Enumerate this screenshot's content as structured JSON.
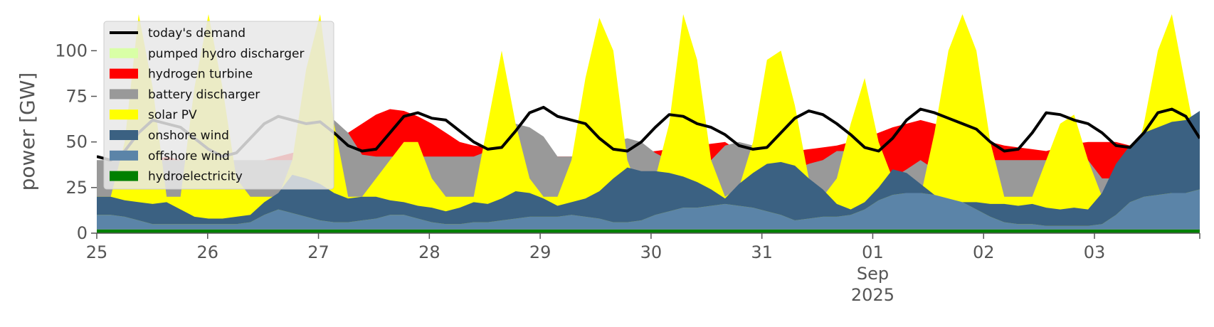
{
  "chart_data": {
    "type": "area",
    "ylabel": "power [GW]",
    "ylim": [
      0,
      120
    ],
    "y_ticks": [
      0,
      25,
      50,
      75,
      100
    ],
    "y_tick_labels": [
      "0",
      "25",
      "50",
      "75",
      "100"
    ],
    "x_range_days": [
      0,
      9.95
    ],
    "x_ticks": [
      {
        "day": 0,
        "label": "25"
      },
      {
        "day": 1,
        "label": "26"
      },
      {
        "day": 2,
        "label": "27"
      },
      {
        "day": 3,
        "label": "28"
      },
      {
        "day": 4,
        "label": "29"
      },
      {
        "day": 5,
        "label": "30"
      },
      {
        "day": 6,
        "label": "31"
      },
      {
        "day": 7,
        "label": "01"
      },
      {
        "day": 8,
        "label": "02"
      },
      {
        "day": 9,
        "label": "03"
      }
    ],
    "month_label": "Sep",
    "year_label": "2025",
    "grid": false,
    "legend_position": "upper-left",
    "legend_order": [
      "demand",
      "pumped_hydro",
      "hydrogen",
      "battery",
      "solar",
      "onshore",
      "offshore",
      "hydro"
    ],
    "series": [
      {
        "key": "hydro",
        "name": "hydroelectricity",
        "color": "#008000",
        "values": [
          2,
          2,
          2,
          2,
          2,
          2,
          2,
          2,
          2,
          2,
          2,
          2,
          2,
          2,
          2,
          2,
          2,
          2,
          2,
          2,
          2,
          2,
          2,
          2,
          2,
          2,
          2,
          2,
          2,
          2,
          2,
          2,
          2,
          2,
          2,
          2,
          2,
          2,
          2,
          2,
          2,
          2,
          2,
          2,
          2,
          2,
          2,
          2,
          2,
          2,
          2,
          2,
          2,
          2,
          2,
          2,
          2,
          2,
          2,
          2,
          2,
          2,
          2,
          2,
          2,
          2,
          2,
          2,
          2,
          2,
          2,
          2,
          2,
          2,
          2,
          2,
          2,
          2,
          2,
          2
        ]
      },
      {
        "key": "offshore",
        "name": "offshore wind",
        "color": "#5b84a8",
        "values": [
          10,
          10,
          9,
          7,
          5,
          5,
          5,
          5,
          5,
          5,
          5,
          6,
          10,
          13,
          11,
          9,
          7,
          6,
          6,
          7,
          8,
          10,
          10,
          8,
          6,
          5,
          5,
          6,
          6,
          7,
          8,
          9,
          9,
          9,
          10,
          9,
          8,
          6,
          6,
          7,
          10,
          12,
          14,
          14,
          15,
          16,
          15,
          14,
          12,
          10,
          7,
          8,
          9,
          9,
          10,
          13,
          18,
          21,
          22,
          22,
          21,
          19,
          17,
          13,
          9,
          6,
          5,
          5,
          4,
          4,
          4,
          4,
          5,
          10,
          17,
          20,
          21,
          22,
          22,
          24
        ]
      },
      {
        "key": "onshore",
        "name": "onshore wind",
        "color": "#3b6182",
        "values": [
          20,
          20,
          18,
          17,
          16,
          17,
          13,
          9,
          8,
          8,
          9,
          10,
          17,
          22,
          32,
          30,
          27,
          22,
          19,
          20,
          20,
          18,
          17,
          15,
          14,
          12,
          14,
          17,
          16,
          19,
          23,
          22,
          19,
          15,
          17,
          19,
          23,
          30,
          36,
          34,
          34,
          33,
          31,
          28,
          24,
          19,
          27,
          33,
          38,
          39,
          37,
          30,
          24,
          16,
          13,
          17,
          25,
          35,
          33,
          27,
          20,
          17,
          17,
          17,
          16,
          16,
          15,
          16,
          14,
          13,
          14,
          13,
          22,
          38,
          48,
          55,
          58,
          61,
          62,
          67
        ]
      },
      {
        "key": "solar",
        "name": "solar PV",
        "color": "#ffff00",
        "values": [
          20,
          20,
          50,
          120,
          80,
          20,
          20,
          80,
          120,
          80,
          30,
          20,
          20,
          20,
          40,
          90,
          120,
          60,
          20,
          20,
          30,
          40,
          50,
          50,
          30,
          20,
          20,
          20,
          60,
          100,
          60,
          30,
          20,
          20,
          40,
          85,
          118,
          100,
          40,
          20,
          30,
          60,
          120,
          95,
          40,
          20,
          25,
          50,
          95,
          100,
          70,
          30,
          20,
          30,
          60,
          85,
          50,
          30,
          20,
          20,
          55,
          100,
          120,
          100,
          50,
          20,
          20,
          20,
          40,
          60,
          65,
          40,
          20,
          20,
          30,
          60,
          100,
          120,
          80,
          40
        ]
      },
      {
        "key": "battery",
        "name": "battery discharger",
        "color": "#999999",
        "values": [
          40,
          40,
          40,
          40,
          40,
          40,
          40,
          40,
          40,
          40,
          40,
          40,
          40,
          40,
          40,
          40,
          60,
          62,
          55,
          43,
          42,
          42,
          42,
          42,
          42,
          42,
          42,
          42,
          45,
          58,
          60,
          58,
          53,
          42,
          42,
          42,
          42,
          50,
          52,
          50,
          44,
          40,
          40,
          40,
          40,
          48,
          50,
          48,
          42,
          38,
          35,
          38,
          40,
          45,
          45,
          40,
          38,
          30,
          35,
          40,
          35,
          38,
          40,
          40,
          40,
          40,
          40,
          40,
          40,
          40,
          40,
          40,
          30,
          30,
          35,
          40,
          40,
          40,
          40,
          40
        ]
      },
      {
        "key": "hydrogen",
        "name": "hydrogen turbine",
        "color": "#ff0000",
        "values": [
          32,
          33,
          35,
          38,
          40,
          42,
          40,
          35,
          30,
          25,
          28,
          35,
          40,
          42,
          44,
          45,
          46,
          50,
          55,
          60,
          65,
          68,
          67,
          64,
          60,
          55,
          50,
          48,
          47,
          46,
          45,
          44,
          43,
          42,
          42,
          42,
          42,
          43,
          44,
          44,
          45,
          46,
          47,
          48,
          49,
          50,
          45,
          45,
          45,
          45,
          45,
          46,
          47,
          48,
          50,
          52,
          55,
          58,
          60,
          62,
          60,
          58,
          55,
          52,
          50,
          48,
          47,
          46,
          45,
          47,
          49,
          50,
          50,
          50,
          48,
          47,
          48,
          50,
          52,
          53
        ]
      },
      {
        "key": "pumped_hydro",
        "name": "pumped hydro discharger",
        "color": "#d9ffa6",
        "values": [
          38,
          38,
          38,
          38,
          38,
          38,
          38,
          38,
          38,
          38,
          38,
          38,
          38,
          38,
          38,
          38,
          38,
          38,
          38,
          38,
          38,
          38,
          38,
          38,
          38,
          38,
          38,
          38,
          38,
          38,
          38,
          38,
          38,
          38,
          38,
          38,
          38,
          38,
          38,
          38,
          38,
          38,
          38,
          38,
          38,
          38,
          38,
          38,
          38,
          38,
          38,
          38,
          38,
          38,
          38,
          38,
          38,
          38,
          38,
          38,
          38,
          38,
          38,
          38,
          38,
          38,
          38,
          38,
          38,
          38,
          38,
          38,
          38,
          38,
          38,
          38,
          38,
          38,
          38,
          38
        ]
      },
      {
        "key": "demand",
        "name": "today's demand",
        "color": "#000000",
        "values": [
          42,
          40,
          45,
          55,
          62,
          60,
          58,
          52,
          46,
          42,
          44,
          52,
          60,
          64,
          62,
          60,
          61,
          55,
          48,
          45,
          46,
          55,
          64,
          66,
          63,
          62,
          56,
          50,
          46,
          47,
          56,
          66,
          69,
          64,
          62,
          60,
          52,
          46,
          45,
          50,
          58,
          65,
          64,
          60,
          58,
          54,
          48,
          46,
          47,
          55,
          63,
          67,
          65,
          60,
          54,
          47,
          45,
          52,
          62,
          68,
          66,
          63,
          60,
          57,
          50,
          45,
          46,
          55,
          66,
          65,
          62,
          60,
          55,
          48,
          47,
          55,
          66,
          68,
          64,
          52
        ]
      }
    ]
  }
}
